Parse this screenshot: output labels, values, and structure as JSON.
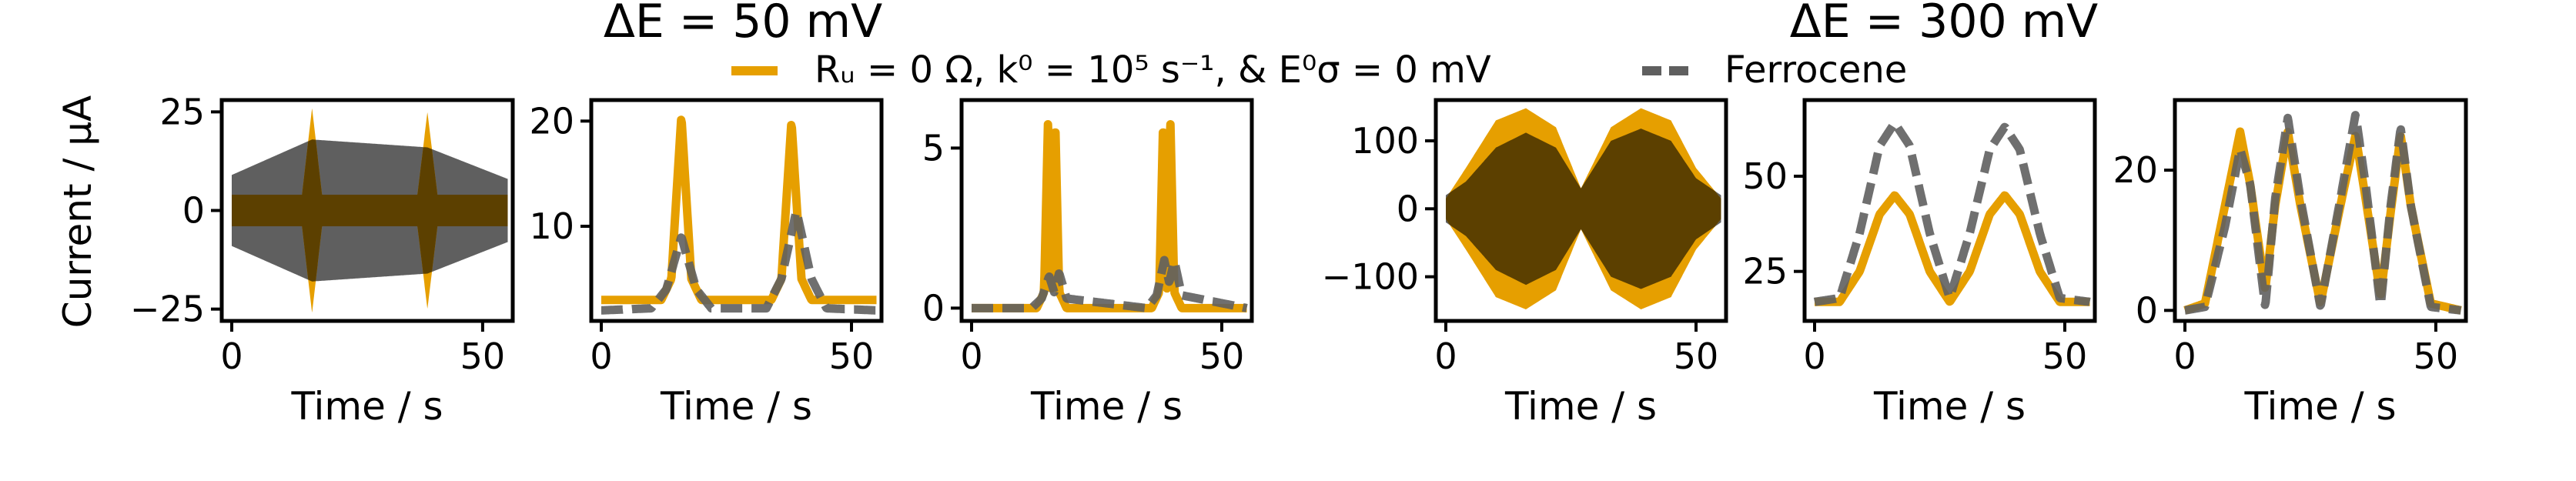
{
  "figure": {
    "group_titles": [
      "ΔE = 50 mV",
      "ΔE = 300 mV"
    ],
    "ylabel": "Current / μA",
    "legend": [
      {
        "label": "Rᵤ = 0 Ω, k⁰ = 10⁵ s⁻¹, &  E⁰σ = 0 mV",
        "color": "#E69F00",
        "style": "solid"
      },
      {
        "label": "Ferrocene",
        "color": "#5F5F5F",
        "style": "dashed"
      }
    ],
    "colors": {
      "simulation": "#E69F00",
      "ferrocene": "#5F5F5F",
      "overlap": "#5C4000"
    }
  },
  "chart_data": [
    {
      "type": "line",
      "group": "ΔE = 50 mV",
      "panel": "time-domain current",
      "xlabel": "Time / s",
      "ylabel": "Current / μA",
      "xlim": [
        -2,
        56
      ],
      "ylim": [
        -28,
        28
      ],
      "xticks": [
        0,
        50
      ],
      "yticks": [
        -25,
        0,
        25
      ],
      "series": [
        {
          "name": "Rᵤ = 0 Ω, k⁰ = 10⁵ s⁻¹, &  E⁰σ = 0 mV",
          "style": "solid",
          "color": "#E69F00",
          "x": [
            0,
            14,
            16,
            18,
            37,
            39,
            41,
            55
          ],
          "envelope": [
            4,
            4,
            26,
            4,
            4,
            25,
            4,
            4
          ]
        },
        {
          "name": "Ferrocene",
          "style": "band",
          "color": "#5F5F5F",
          "x": [
            0,
            16,
            39,
            55
          ],
          "envelope": [
            9,
            18,
            16,
            8
          ]
        }
      ]
    },
    {
      "type": "line",
      "group": "ΔE = 50 mV",
      "panel": "first harmonic",
      "xlabel": "Time / s",
      "xlim": [
        -2,
        56
      ],
      "ylim": [
        1,
        22
      ],
      "xticks": [
        0,
        50
      ],
      "yticks": [
        10,
        20
      ],
      "series": [
        {
          "name": "Rᵤ = 0 Ω, k⁰ = 10⁵ s⁻¹, &  E⁰σ = 0 mV",
          "style": "solid",
          "color": "#E69F00",
          "x": [
            0,
            12,
            14,
            16,
            18,
            20,
            34,
            36,
            38,
            40,
            42,
            55
          ],
          "y": [
            3,
            3,
            5,
            20.5,
            5,
            3,
            3,
            5,
            20,
            5,
            3,
            3
          ]
        },
        {
          "name": "Ferrocene",
          "style": "dashed",
          "color": "#5F5F5F",
          "x": [
            0,
            10,
            13,
            16,
            19,
            22,
            33,
            36,
            39,
            42,
            45,
            55
          ],
          "y": [
            2,
            2.2,
            4,
            9,
            4,
            2.2,
            2.2,
            5,
            11.5,
            5,
            2.2,
            2
          ]
        }
      ]
    },
    {
      "type": "line",
      "group": "ΔE = 50 mV",
      "panel": "second harmonic",
      "xlabel": "Time / s",
      "xlim": [
        -2,
        56
      ],
      "ylim": [
        -0.4,
        6.5
      ],
      "xticks": [
        0,
        50
      ],
      "yticks": [
        0,
        5
      ],
      "series": [
        {
          "name": "Rᵤ = 0 Ω, k⁰ = 10⁵ s⁻¹, &  E⁰σ = 0 mV",
          "style": "solid",
          "color": "#E69F00",
          "x": [
            0,
            13,
            14.5,
            15.3,
            16,
            16.7,
            17.5,
            19,
            36,
            37.5,
            38.3,
            39,
            39.7,
            40.5,
            42,
            55
          ],
          "y": [
            0,
            0,
            0.5,
            6,
            0.2,
            6,
            0.5,
            0,
            0,
            0.5,
            6,
            0.2,
            6,
            0.5,
            0,
            0
          ]
        },
        {
          "name": "Ferrocene",
          "style": "dashed",
          "color": "#5F5F5F",
          "x": [
            0,
            12,
            14,
            15.5,
            16.5,
            17.5,
            19,
            35,
            37,
            38.5,
            39.5,
            40.5,
            42,
            55
          ],
          "y": [
            0,
            0,
            0.3,
            1.0,
            0.5,
            1.1,
            0.3,
            0,
            0.4,
            1.5,
            0.8,
            1.5,
            0.4,
            0
          ]
        }
      ]
    },
    {
      "type": "line",
      "group": "ΔE = 300 mV",
      "panel": "time-domain current",
      "xlabel": "Time / s",
      "xlim": [
        -2,
        56
      ],
      "ylim": [
        -165,
        160
      ],
      "xticks": [
        0,
        50
      ],
      "yticks": [
        -100,
        0,
        100
      ],
      "series": [
        {
          "name": "Rᵤ = 0 Ω, k⁰ = 10⁵ s⁻¹, &  E⁰σ = 0 mV",
          "style": "solid",
          "color": "#E69F00",
          "x": [
            0,
            4,
            10,
            16,
            22,
            27,
            33,
            39,
            45,
            50,
            55
          ],
          "envelope": [
            15,
            60,
            130,
            148,
            120,
            30,
            120,
            148,
            130,
            60,
            15
          ]
        },
        {
          "name": "Ferrocene",
          "style": "band",
          "color": "#5F5F5F",
          "x": [
            0,
            4,
            10,
            16,
            22,
            27,
            33,
            39,
            45,
            50,
            55
          ],
          "envelope": [
            20,
            40,
            90,
            112,
            90,
            30,
            100,
            118,
            100,
            45,
            20
          ]
        }
      ]
    },
    {
      "type": "line",
      "group": "ΔE = 300 mV",
      "panel": "first harmonic",
      "xlabel": "Time / s",
      "xlim": [
        -2,
        56
      ],
      "ylim": [
        12,
        70
      ],
      "xticks": [
        0,
        50
      ],
      "yticks": [
        25,
        50
      ],
      "series": [
        {
          "name": "Rᵤ = 0 Ω, k⁰ = 10⁵ s⁻¹, &  E⁰σ = 0 mV",
          "style": "solid",
          "color": "#E69F00",
          "x": [
            0,
            5,
            9,
            13,
            16,
            19,
            23,
            27,
            31,
            35,
            38,
            41,
            45,
            49,
            55
          ],
          "y": [
            17,
            17,
            25,
            40,
            45,
            40,
            25,
            17,
            25,
            40,
            45,
            40,
            25,
            17,
            17
          ]
        },
        {
          "name": "Ferrocene",
          "style": "dashed",
          "color": "#5F5F5F",
          "x": [
            0,
            5,
            9,
            13,
            16,
            19,
            23,
            27,
            31,
            35,
            38,
            41,
            45,
            49,
            55
          ],
          "y": [
            17,
            18,
            35,
            58,
            64,
            58,
            35,
            18,
            35,
            57,
            63,
            57,
            35,
            18,
            17
          ]
        }
      ]
    },
    {
      "type": "line",
      "group": "ΔE = 300 mV",
      "panel": "second harmonic",
      "xlabel": "Time / s",
      "xlim": [
        -2,
        56
      ],
      "ylim": [
        -1.5,
        30
      ],
      "xticks": [
        0,
        50
      ],
      "yticks": [
        0,
        20
      ],
      "series": [
        {
          "name": "Rᵤ = 0 Ω, k⁰ = 10⁵ s⁻¹, &  E⁰σ = 0 mV",
          "style": "solid",
          "color": "#E69F00",
          "x": [
            0,
            4,
            8,
            11,
            13,
            16,
            18,
            20.5,
            23,
            27,
            31,
            34,
            36,
            39,
            41,
            43,
            45,
            49,
            55
          ],
          "y": [
            0,
            1,
            15,
            25.5,
            18,
            3,
            15,
            25.5,
            15,
            1,
            15,
            25,
            16,
            2,
            14,
            25,
            15,
            1,
            0
          ]
        },
        {
          "name": "Ferrocene",
          "style": "dashed",
          "color": "#5F5F5F",
          "x": [
            0,
            4,
            8,
            11,
            13,
            16,
            18,
            20.5,
            23,
            27,
            31,
            34,
            36,
            39,
            41,
            43,
            45,
            49,
            55
          ],
          "y": [
            0,
            0.5,
            12,
            23,
            18,
            0.5,
            16,
            27.5,
            16,
            0.5,
            16,
            28,
            18,
            0.5,
            15,
            26,
            15,
            0.5,
            0
          ]
        }
      ]
    }
  ]
}
